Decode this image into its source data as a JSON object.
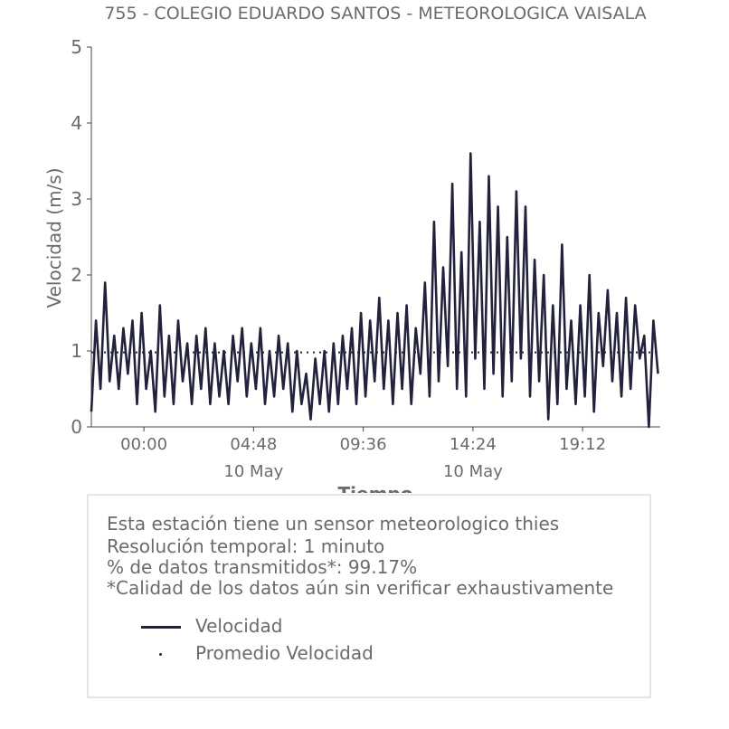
{
  "chart_data": {
    "type": "line",
    "title": "755 - COLEGIO EDUARDO SANTOS - METEOROLOGICA VAISALA",
    "xlabel": "Tiempo",
    "ylabel": "Velocidad (m/s)",
    "ylim": [
      0,
      5
    ],
    "yticks": [
      "0",
      "1",
      "2",
      "3",
      "4",
      "5"
    ],
    "xlim_hours": [
      -2.3,
      22.6
    ],
    "xticks": [
      {
        "time": "00:00",
        "date": "",
        "hour": 0
      },
      {
        "time": "04:48",
        "date": "10 May",
        "hour": 4.8
      },
      {
        "time": "09:36",
        "date": "",
        "hour": 9.6
      },
      {
        "time": "14:24",
        "date": "10 May",
        "hour": 14.4
      },
      {
        "time": "19:12",
        "date": "",
        "hour": 19.2
      }
    ],
    "grid": false,
    "series": [
      {
        "name": "Velocidad",
        "color": "#22223f",
        "x_hours": [
          -2.3,
          -2.1,
          -1.9,
          -1.7,
          -1.5,
          -1.3,
          -1.1,
          -0.9,
          -0.7,
          -0.5,
          -0.3,
          -0.1,
          0.1,
          0.3,
          0.5,
          0.7,
          0.9,
          1.1,
          1.3,
          1.5,
          1.7,
          1.9,
          2.1,
          2.3,
          2.5,
          2.7,
          2.9,
          3.1,
          3.3,
          3.5,
          3.7,
          3.9,
          4.1,
          4.3,
          4.5,
          4.7,
          4.9,
          5.1,
          5.3,
          5.5,
          5.7,
          5.9,
          6.1,
          6.3,
          6.5,
          6.7,
          6.9,
          7.1,
          7.3,
          7.5,
          7.7,
          7.9,
          8.1,
          8.3,
          8.5,
          8.7,
          8.9,
          9.1,
          9.3,
          9.5,
          9.7,
          9.9,
          10.1,
          10.3,
          10.5,
          10.7,
          10.9,
          11.1,
          11.3,
          11.5,
          11.7,
          11.9,
          12.1,
          12.3,
          12.5,
          12.7,
          12.9,
          13.1,
          13.3,
          13.5,
          13.7,
          13.9,
          14.1,
          14.3,
          14.5,
          14.7,
          14.9,
          15.1,
          15.3,
          15.5,
          15.7,
          15.9,
          16.1,
          16.3,
          16.5,
          16.7,
          16.9,
          17.1,
          17.3,
          17.5,
          17.7,
          17.9,
          18.1,
          18.3,
          18.5,
          18.7,
          18.9,
          19.1,
          19.3,
          19.5,
          19.7,
          19.9,
          20.1,
          20.3,
          20.5,
          20.7,
          20.9,
          21.1,
          21.3,
          21.5,
          21.7,
          21.9,
          22.1,
          22.3,
          22.5
        ],
        "values": [
          0.2,
          1.4,
          0.5,
          1.9,
          0.6,
          1.2,
          0.5,
          1.3,
          0.7,
          1.4,
          0.3,
          1.5,
          0.5,
          1.0,
          0.2,
          1.6,
          0.4,
          1.2,
          0.3,
          1.4,
          0.6,
          1.1,
          0.3,
          1.2,
          0.5,
          1.3,
          0.3,
          1.1,
          0.4,
          1.0,
          0.3,
          1.2,
          0.6,
          1.3,
          0.4,
          1.1,
          0.5,
          1.3,
          0.3,
          1.0,
          0.4,
          1.2,
          0.5,
          1.1,
          0.2,
          1.0,
          0.3,
          0.7,
          0.1,
          0.9,
          0.3,
          1.0,
          0.2,
          1.1,
          0.3,
          1.2,
          0.5,
          1.3,
          0.3,
          1.5,
          0.4,
          1.4,
          0.6,
          1.7,
          0.5,
          1.4,
          0.3,
          1.5,
          0.5,
          1.6,
          0.3,
          1.3,
          0.7,
          1.9,
          0.4,
          2.7,
          0.6,
          2.1,
          0.8,
          3.2,
          0.5,
          2.3,
          0.4,
          3.6,
          0.9,
          2.7,
          0.5,
          3.3,
          0.7,
          2.9,
          0.4,
          2.5,
          0.6,
          3.1,
          0.9,
          2.9,
          0.4,
          2.2,
          0.6,
          2.0,
          0.1,
          1.6,
          0.3,
          2.4,
          0.5,
          1.4,
          0.3,
          1.6,
          0.4,
          2.0,
          0.2,
          1.5,
          0.8,
          1.8,
          0.6,
          1.5,
          0.4,
          1.7,
          0.5,
          1.6,
          0.9,
          1.2,
          0.0,
          1.4,
          0.7
        ]
      },
      {
        "name": "Promedio Velocidad",
        "color": "#22223f",
        "style": "dotted",
        "value": 0.98
      }
    ]
  },
  "info": {
    "line1": "Esta estación tiene un sensor meteorologico thies",
    "line2": "Resolución temporal: 1 minuto",
    "line3": "% de datos transmitidos*: 99.17%",
    "line4": "*Calidad de los datos aún sin verificar exhaustivamente"
  },
  "legend": {
    "placement": "bottom",
    "items": [
      {
        "label": "Velocidad",
        "color": "#22223f"
      },
      {
        "label": "Promedio Velocidad",
        "color": "#22223f"
      }
    ]
  }
}
